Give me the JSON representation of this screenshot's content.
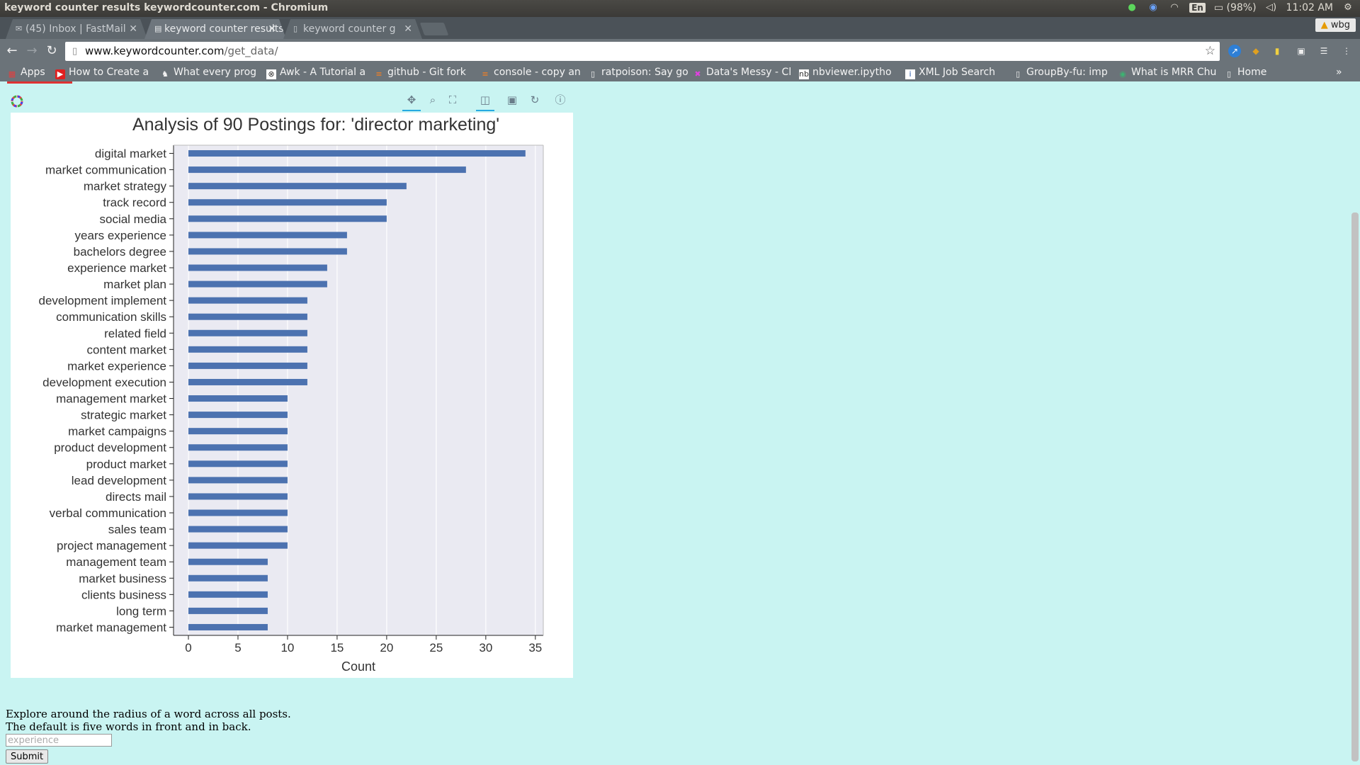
{
  "os": {
    "window_title": "keyword counter results keywordcounter.com - Chromium",
    "battery": "(98%)",
    "clock": "11:02 AM",
    "lang": "En"
  },
  "tabs": [
    {
      "label": "(45) Inbox | FastMail"
    },
    {
      "label": "keyword counter results"
    },
    {
      "label": "keyword counter g"
    }
  ],
  "profile": "wbg",
  "address": {
    "host": "www.keywordcounter.com",
    "path": "/get_data/"
  },
  "bookmarks": [
    {
      "label": "Apps"
    },
    {
      "label": "How to Create a"
    },
    {
      "label": "What every prog"
    },
    {
      "label": "Awk - A Tutorial a"
    },
    {
      "label": "github - Git fork"
    },
    {
      "label": "console - copy an"
    },
    {
      "label": "ratpoison: Say go"
    },
    {
      "label": "Data's Messy - Cl"
    },
    {
      "label": "nbviewer.ipytho"
    },
    {
      "label": "XML Job Search"
    },
    {
      "label": "GroupBy-fu: imp"
    },
    {
      "label": "What is MRR Chu"
    },
    {
      "label": "Home"
    }
  ],
  "chart_data": {
    "type": "bar",
    "orientation": "horizontal",
    "title": "Analysis of 90 Postings for: 'director marketing'",
    "xlabel": "Count",
    "ylabel": "",
    "xlim": [
      -1.5,
      35.8
    ],
    "xticks": [
      0,
      5,
      10,
      15,
      20,
      25,
      30,
      35
    ],
    "grid": true,
    "categories": [
      "digital market",
      "market communication",
      "market strategy",
      "track record",
      "social media",
      "years experience",
      "bachelors degree",
      "experience market",
      "market plan",
      "development implement",
      "communication skills",
      "related field",
      "content market",
      "market experience",
      "development execution",
      "management market",
      "strategic market",
      "market campaigns",
      "product development",
      "product market",
      "lead development",
      "directs mail",
      "verbal communication",
      "sales team",
      "project management",
      "management team",
      "market business",
      "clients business",
      "long term",
      "market management"
    ],
    "values": [
      34,
      28,
      22,
      20,
      20,
      16,
      16,
      14,
      14,
      12,
      12,
      12,
      12,
      12,
      12,
      10,
      10,
      10,
      10,
      10,
      10,
      10,
      10,
      10,
      10,
      8,
      8,
      8,
      8,
      8
    ],
    "bar_color": "#4c72b0",
    "background": "#eaeaf2"
  },
  "explore": {
    "line1": "Explore around the radius of a word across all posts.",
    "line2": "The default is five words in front and in back.",
    "placeholder": "experience",
    "submit": "Submit"
  }
}
